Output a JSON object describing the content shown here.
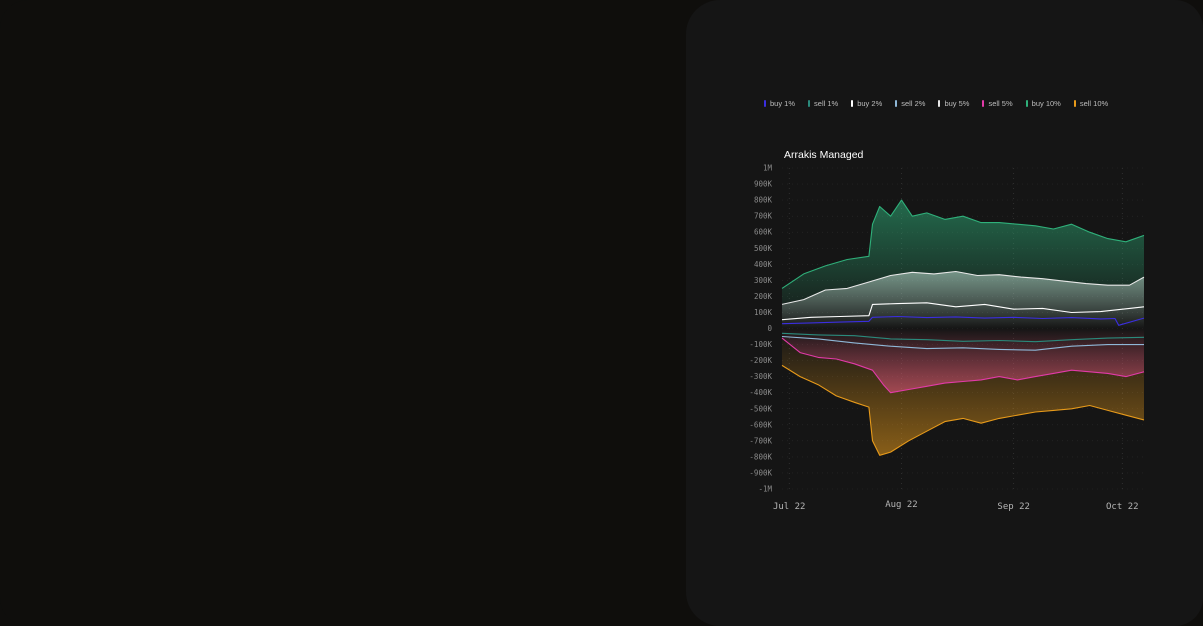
{
  "chart_data": {
    "type": "area",
    "title": "Arrakis Managed",
    "xlabel": "",
    "ylabel": "",
    "ylim": [
      -1000000,
      1000000
    ],
    "y_ticks": [
      {
        "label": "1M",
        "value": 1000000
      },
      {
        "label": "900K",
        "value": 900000
      },
      {
        "label": "800K",
        "value": 800000
      },
      {
        "label": "700K",
        "value": 700000
      },
      {
        "label": "600K",
        "value": 600000
      },
      {
        "label": "500K",
        "value": 500000
      },
      {
        "label": "400K",
        "value": 400000
      },
      {
        "label": "300K",
        "value": 300000
      },
      {
        "label": "200K",
        "value": 200000
      },
      {
        "label": "100K",
        "value": 100000
      },
      {
        "label": "0",
        "value": 0
      },
      {
        "label": "-100K",
        "value": -100000
      },
      {
        "label": "-200K",
        "value": -200000
      },
      {
        "label": "-300K",
        "value": -300000
      },
      {
        "label": "-400K",
        "value": -400000
      },
      {
        "label": "-500K",
        "value": -500000
      },
      {
        "label": "-600K",
        "value": -600000
      },
      {
        "label": "-700K",
        "value": -700000
      },
      {
        "label": "-800K",
        "value": -800000
      },
      {
        "label": "-900K",
        "value": -900000
      },
      {
        "label": "-1M",
        "value": -1000000
      }
    ],
    "x_ticks": [
      {
        "label": "Jul 22",
        "day": 2
      },
      {
        "label": "Aug 22",
        "day": 33
      },
      {
        "label": "Sep 22",
        "day": 64
      },
      {
        "label": "Oct 22",
        "day": 94
      }
    ],
    "x_range": [
      0,
      100
    ],
    "series": [
      {
        "name": "buy 1%",
        "color": "#3b2ee0",
        "filled": false,
        "x": [
          0,
          8,
          16,
          24,
          25,
          32,
          40,
          48,
          56,
          64,
          72,
          80,
          88,
          92,
          93,
          100
        ],
        "values": [
          30000,
          35000,
          40000,
          45000,
          70000,
          75000,
          68000,
          72000,
          65000,
          70000,
          62000,
          68000,
          60000,
          62000,
          20000,
          65000
        ]
      },
      {
        "name": "sell 1%",
        "color": "#2a8a7c",
        "filled": false,
        "x": [
          0,
          10,
          20,
          30,
          40,
          50,
          60,
          70,
          80,
          90,
          100
        ],
        "values": [
          -30000,
          -40000,
          -45000,
          -65000,
          -70000,
          -80000,
          -75000,
          -82000,
          -70000,
          -60000,
          -55000
        ]
      },
      {
        "name": "buy 2%",
        "color": "#ffffff",
        "filled": false,
        "x": [
          0,
          8,
          16,
          24,
          25,
          32,
          40,
          48,
          56,
          64,
          72,
          80,
          88,
          96,
          100
        ],
        "values": [
          55000,
          70000,
          75000,
          80000,
          150000,
          155000,
          160000,
          135000,
          150000,
          120000,
          125000,
          100000,
          105000,
          125000,
          135000
        ]
      },
      {
        "name": "sell 2%",
        "color": "#8fb8d8",
        "filled": false,
        "x": [
          0,
          10,
          20,
          30,
          40,
          50,
          60,
          70,
          80,
          90,
          100
        ],
        "values": [
          -50000,
          -65000,
          -90000,
          -110000,
          -125000,
          -120000,
          -130000,
          -135000,
          -110000,
          -100000,
          -100000
        ]
      },
      {
        "name": "buy 5%",
        "color": "#e8e8e8",
        "filled": true,
        "x": [
          0,
          6,
          12,
          18,
          24,
          30,
          36,
          42,
          48,
          54,
          60,
          66,
          72,
          78,
          84,
          90,
          96,
          100
        ],
        "values": [
          150000,
          180000,
          240000,
          250000,
          290000,
          330000,
          350000,
          340000,
          355000,
          330000,
          335000,
          320000,
          310000,
          295000,
          280000,
          270000,
          270000,
          320000
        ]
      },
      {
        "name": "sell 5%",
        "color": "#e23aa8",
        "filled": true,
        "x": [
          0,
          5,
          10,
          15,
          20,
          25,
          28,
          30,
          35,
          40,
          45,
          50,
          55,
          60,
          65,
          70,
          75,
          80,
          85,
          90,
          95,
          100
        ],
        "values": [
          -60000,
          -150000,
          -180000,
          -190000,
          -220000,
          -260000,
          -350000,
          -400000,
          -380000,
          -360000,
          -340000,
          -330000,
          -320000,
          -300000,
          -320000,
          -300000,
          -280000,
          -260000,
          -270000,
          -280000,
          -300000,
          -270000
        ]
      },
      {
        "name": "buy 10%",
        "color": "#2fb07a",
        "filled": true,
        "x": [
          0,
          6,
          12,
          18,
          24,
          25,
          27,
          30,
          33,
          36,
          40,
          45,
          50,
          55,
          60,
          65,
          70,
          75,
          80,
          85,
          90,
          95,
          100
        ],
        "values": [
          250000,
          340000,
          390000,
          430000,
          450000,
          650000,
          760000,
          700000,
          800000,
          700000,
          720000,
          680000,
          700000,
          660000,
          660000,
          650000,
          640000,
          620000,
          650000,
          600000,
          560000,
          540000,
          580000
        ]
      },
      {
        "name": "sell 10%",
        "color": "#e79a1a",
        "filled": true,
        "x": [
          0,
          5,
          10,
          15,
          20,
          24,
          25,
          27,
          30,
          35,
          40,
          45,
          50,
          55,
          60,
          65,
          70,
          75,
          80,
          85,
          90,
          95,
          100
        ],
        "values": [
          -230000,
          -300000,
          -350000,
          -420000,
          -460000,
          -490000,
          -700000,
          -790000,
          -770000,
          -700000,
          -640000,
          -580000,
          -560000,
          -590000,
          -560000,
          -540000,
          -520000,
          -510000,
          -500000,
          -480000,
          -510000,
          -540000,
          -570000
        ]
      }
    ]
  }
}
